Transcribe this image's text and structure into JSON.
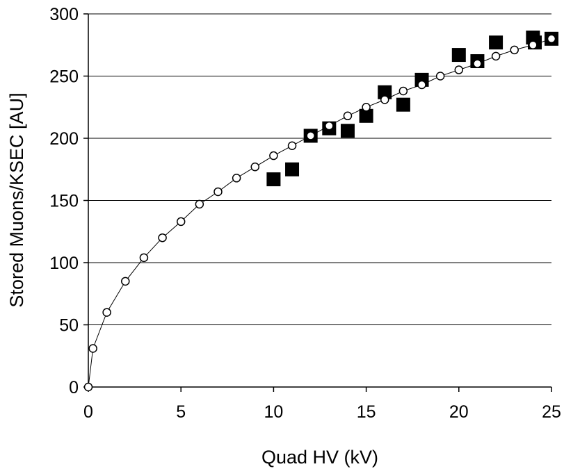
{
  "chart_data": {
    "type": "scatter",
    "title": "",
    "xlabel": "Quad HV (kV)",
    "ylabel": "Stored Muons/KSEC [AU]",
    "xlim": [
      0,
      25
    ],
    "ylim": [
      0,
      300
    ],
    "x_ticks": [
      0,
      5,
      10,
      15,
      20,
      25
    ],
    "y_ticks": [
      0,
      50,
      100,
      150,
      200,
      250,
      300
    ],
    "x_tick_labels": [
      "0",
      "5",
      "10",
      "15",
      "20",
      "25"
    ],
    "y_tick_labels": [
      "0",
      "50",
      "100",
      "150",
      "200",
      "250",
      "300"
    ],
    "grid": "horizontal",
    "legend": "none",
    "series": [
      {
        "marker": "open-circle",
        "line": true,
        "color": "#000000",
        "points": [
          [
            0,
            0
          ],
          [
            0.25,
            31
          ],
          [
            1,
            60
          ],
          [
            2,
            85
          ],
          [
            3,
            104
          ],
          [
            4,
            120
          ],
          [
            5,
            133
          ],
          [
            6,
            147
          ],
          [
            7,
            157
          ],
          [
            8,
            168
          ],
          [
            9,
            177
          ],
          [
            10,
            186
          ],
          [
            11,
            194
          ],
          [
            12,
            202
          ],
          [
            13,
            210
          ],
          [
            14,
            218
          ],
          [
            15,
            225
          ],
          [
            16,
            231
          ],
          [
            17,
            238
          ],
          [
            18,
            243
          ],
          [
            19,
            250
          ],
          [
            20,
            255
          ],
          [
            21,
            260
          ],
          [
            22,
            266
          ],
          [
            23,
            271
          ],
          [
            24,
            275
          ],
          [
            25,
            280
          ]
        ]
      },
      {
        "marker": "filled-square",
        "line": false,
        "color": "#000000",
        "points": [
          [
            10,
            167
          ],
          [
            11,
            175
          ],
          [
            12,
            202
          ],
          [
            13,
            208
          ],
          [
            14,
            206
          ],
          [
            15,
            218
          ],
          [
            16,
            237
          ],
          [
            17,
            227
          ],
          [
            18,
            247
          ],
          [
            20,
            267
          ],
          [
            21,
            262
          ],
          [
            22,
            277
          ],
          [
            24,
            281
          ],
          [
            24.1,
            277
          ],
          [
            25,
            280
          ]
        ]
      }
    ]
  }
}
